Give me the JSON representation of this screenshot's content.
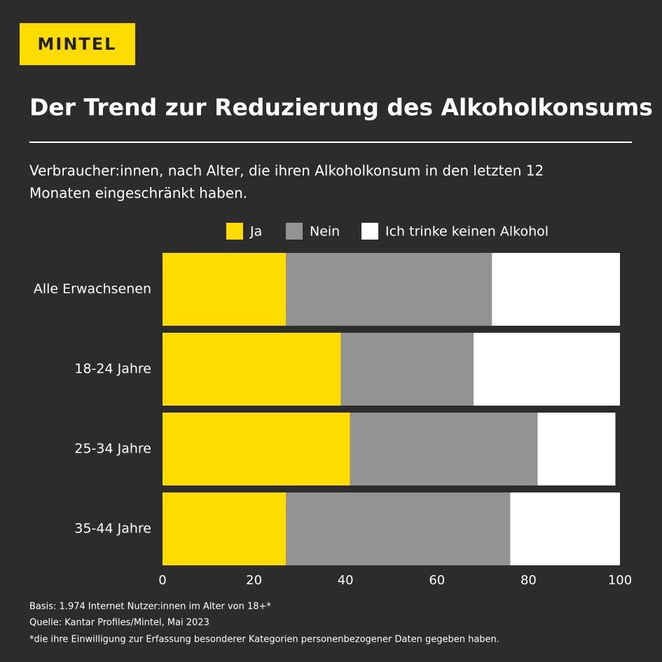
{
  "chart_data": {
    "type": "stacked-bar-horizontal",
    "logo": "MINTEL",
    "title": "Der Trend zur Reduzierung des Alkoholkonsums",
    "subtitle": [
      "Verbraucher:innen, nach Alter, die ihren Alkoholkonsum in den letzten 12",
      "Monaten eingeschränkt haben."
    ],
    "categories": [
      "Alle Erwachsenen",
      "18-24 Jahre",
      "25-34 Jahre",
      "35-44 Jahre"
    ],
    "series": [
      {
        "name": "Ja",
        "color": "#ffdc00",
        "values": [
          27,
          39,
          41,
          27
        ]
      },
      {
        "name": "Nein",
        "color": "#939393",
        "values": [
          45,
          29,
          41,
          49
        ]
      },
      {
        "name": "Ich trinke keinen Alkohol",
        "color": "#ffffff",
        "values": [
          28,
          32,
          17,
          24
        ]
      }
    ],
    "xlim": [
      0,
      100
    ],
    "xticks": [
      0,
      20,
      40,
      60,
      80,
      100
    ],
    "notes": [
      "Basis:  1.974 Internet Nutzer:innen im Alter von 18+*",
      "Quelle: Kantar Profiles/Mintel, Mai 2023",
      "*die ihre Einwilligung zur Erfassung besonderer Kategorien personenbezogener Daten gegeben haben."
    ]
  }
}
